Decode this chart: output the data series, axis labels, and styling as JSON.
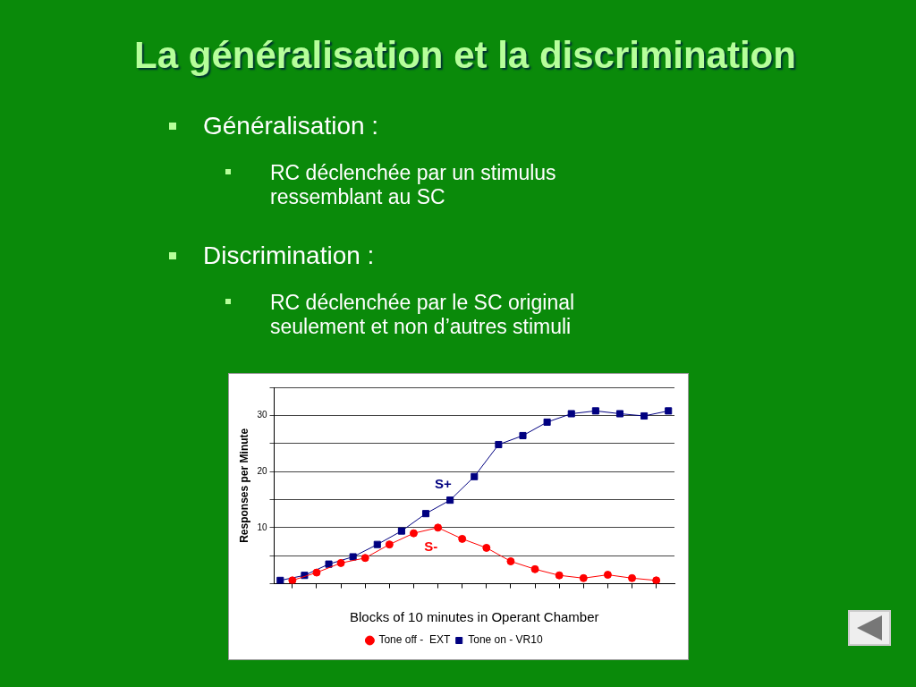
{
  "chart_data": {
    "type": "line",
    "title": "La généralisation et la discrimination",
    "annotations": [
      "Généralisation :",
      "RC déclenchée par un stimulus ressemblant au SC",
      "Discrimination :",
      "RC déclenchée par le SC original seulement et non d’autres stimuli",
      "S+",
      "S-"
    ],
    "xlabel": "Blocks of 10 minutes in Operant Chamber",
    "ylabel": "Responses per Minute",
    "categories": [
      null,
      null,
      null,
      null,
      null,
      null,
      null,
      null,
      null,
      null,
      null,
      null,
      null,
      null,
      null,
      null,
      null,
      null,
      null,
      null,
      null,
      null,
      null,
      null,
      null,
      null,
      null,
      null,
      null,
      null,
      null,
      null,
      null
    ],
    "series": [
      {
        "name": "Tone off -  EXT",
        "color": "#ff0000",
        "marker": "circle",
        "values": [
          null,
          0.6,
          null,
          2.0,
          null,
          3.7,
          null,
          4.6,
          null,
          7.0,
          null,
          9.0,
          null,
          10,
          null,
          8,
          null,
          6.4,
          null,
          4,
          null,
          2.6,
          null,
          1.5,
          null,
          1,
          null,
          1.6,
          null,
          1,
          null,
          0.6,
          null
        ]
      },
      {
        "name": "Tone on - VR10",
        "color": "#000080",
        "marker": "square",
        "values": [
          0.6,
          null,
          1.5,
          null,
          3.5,
          null,
          4.8,
          null,
          7,
          null,
          9.4,
          null,
          12.5,
          null,
          14.9,
          null,
          19.1,
          null,
          24.8,
          null,
          26.4,
          null,
          28.8,
          null,
          30.3,
          null,
          30.8,
          null,
          30.3,
          null,
          29.9,
          null,
          30.8
        ]
      }
    ],
    "ylim": [
      0,
      35
    ],
    "yticks": [
      {
        "value": 0,
        "label": null
      },
      {
        "value": 5,
        "label": null
      },
      {
        "value": 10,
        "label": "10"
      },
      {
        "value": 15,
        "label": null
      },
      {
        "value": 20,
        "label": "20"
      },
      {
        "value": 25,
        "label": null
      },
      {
        "value": 30,
        "label": "30"
      },
      {
        "value": 35,
        "label": null
      }
    ],
    "grid": "y",
    "legend": "bottom",
    "line_style": "solid"
  }
}
